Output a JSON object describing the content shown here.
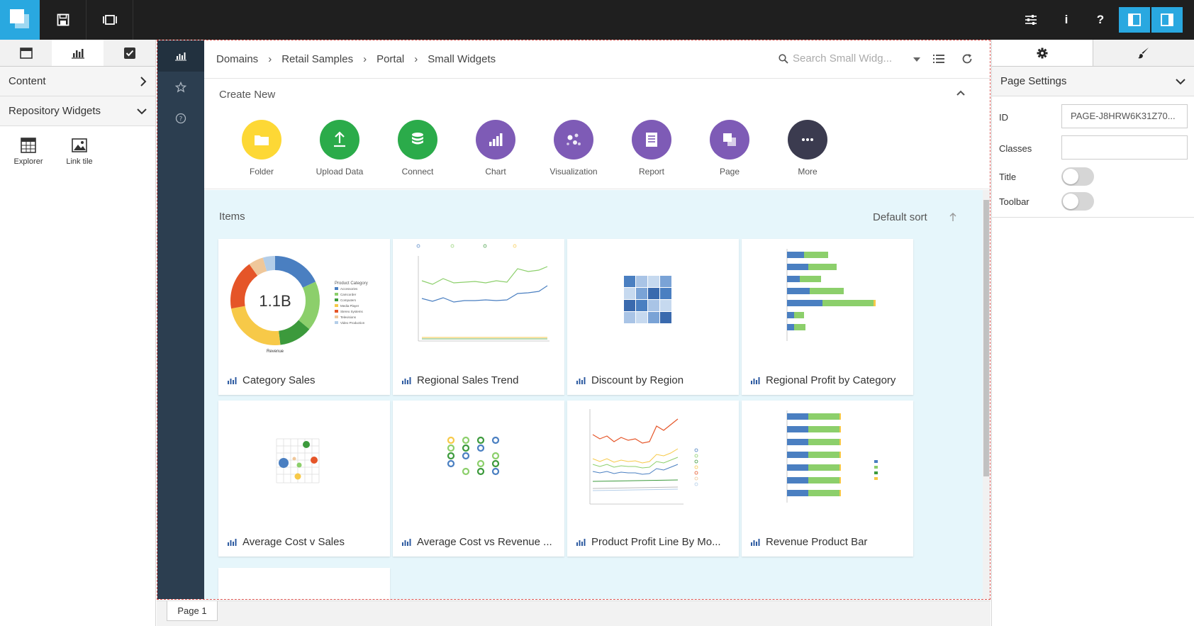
{
  "left_panel": {
    "sections": {
      "content": "Content",
      "repository_widgets": "Repository Widgets"
    },
    "widgets": [
      {
        "label": "Explorer"
      },
      {
        "label": "Link tile"
      }
    ]
  },
  "breadcrumb": [
    "Domains",
    "Retail Samples",
    "Portal",
    "Small Widgets"
  ],
  "search": {
    "placeholder": "Search Small Widg..."
  },
  "create_new": {
    "title": "Create New",
    "items": [
      {
        "label": "Folder",
        "color": "#fdd835",
        "icon": "folder-icon"
      },
      {
        "label": "Upload Data",
        "color": "#2bab4a",
        "icon": "upload-icon"
      },
      {
        "label": "Connect",
        "color": "#2bab4a",
        "icon": "database-icon"
      },
      {
        "label": "Chart",
        "color": "#7e5bb6",
        "icon": "bar-chart-icon"
      },
      {
        "label": "Visualization",
        "color": "#7e5bb6",
        "icon": "scatter-icon"
      },
      {
        "label": "Report",
        "color": "#7e5bb6",
        "icon": "report-icon"
      },
      {
        "label": "Page",
        "color": "#7e5bb6",
        "icon": "page-icon"
      },
      {
        "label": "More",
        "color": "#3b3b4f",
        "icon": "more-icon"
      }
    ]
  },
  "items": {
    "title": "Items",
    "sort_label": "Default sort",
    "cards": [
      {
        "title": "Category Sales",
        "thumb": "donut",
        "center_value": "1.1B",
        "legend_title": "Product Category",
        "legend": [
          "Accessories",
          "Camcorder",
          "Computers",
          "Media Player",
          "Stereo Systems",
          "Televisions",
          "Video Production"
        ],
        "xlabel": "Revenue"
      },
      {
        "title": "Regional Sales Trend",
        "thumb": "line"
      },
      {
        "title": "Discount by Region",
        "thumb": "heatmap"
      },
      {
        "title": "Regional Profit by Category",
        "thumb": "hbar"
      },
      {
        "title": "Average Cost v Sales",
        "thumb": "scatter"
      },
      {
        "title": "Average Cost vs Revenue ...",
        "thumb": "bubble"
      },
      {
        "title": "Product Profit Line By Mo...",
        "thumb": "multiline"
      },
      {
        "title": "Revenue Product Bar",
        "thumb": "stacked"
      }
    ]
  },
  "page_tab": "Page 1",
  "right_panel": {
    "section_title": "Page Settings",
    "props": {
      "id_label": "ID",
      "id_value": "PAGE-J8HRW6K31Z70...",
      "classes_label": "Classes",
      "classes_value": "",
      "title_label": "Title",
      "toolbar_label": "Toolbar"
    },
    "toggles": {
      "title": false,
      "toolbar": false
    }
  }
}
